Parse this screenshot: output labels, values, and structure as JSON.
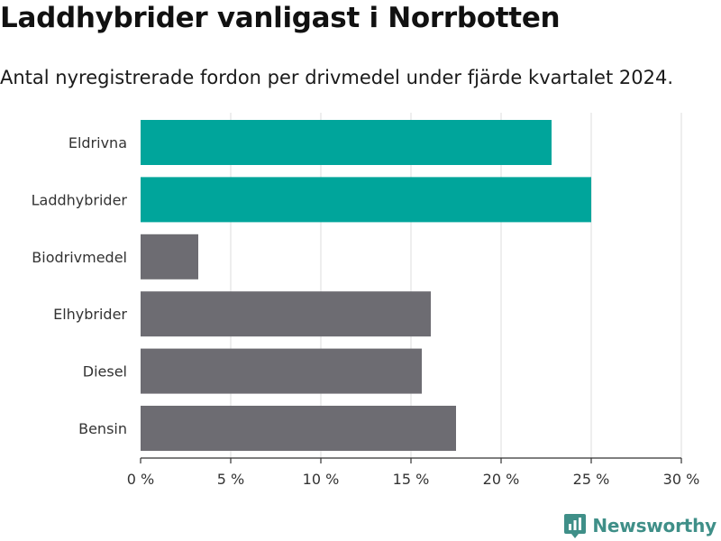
{
  "header": {
    "title": "Laddhybrider vanligast i Norrbotten",
    "subtitle": "Antal nyregistrerade fordon per drivmedel under fjärde kvartalet 2024."
  },
  "chart_data": {
    "type": "bar",
    "orientation": "horizontal",
    "title": "Laddhybrider vanligast i Norrbotten",
    "subtitle": "Antal nyregistrerade fordon per drivmedel under fjärde kvartalet 2024.",
    "xlabel": "",
    "ylabel": "",
    "categories": [
      "Eldrivna",
      "Laddhybrider",
      "Biodrivmedel",
      "Elhybrider",
      "Diesel",
      "Bensin"
    ],
    "values": [
      22.8,
      25.0,
      3.2,
      16.1,
      15.6,
      17.5
    ],
    "unit": "%",
    "highlighted": [
      true,
      true,
      false,
      false,
      false,
      false
    ],
    "xlim": [
      0,
      30
    ],
    "xticks": [
      0,
      5,
      10,
      15,
      20,
      25,
      30
    ],
    "xtick_labels": [
      "0 %",
      "5 %",
      "10 %",
      "15 %",
      "20 %",
      "25 %",
      "30 %"
    ],
    "grid": true,
    "colors": {
      "highlight": "#00a59b",
      "default": "#6d6c72",
      "grid": "#dddddd",
      "axis": "#333333"
    }
  },
  "footer": {
    "brand": "Newsworthy",
    "brand_color": "#3f8f88",
    "logo_icon": "newsworthy-logo-icon"
  }
}
